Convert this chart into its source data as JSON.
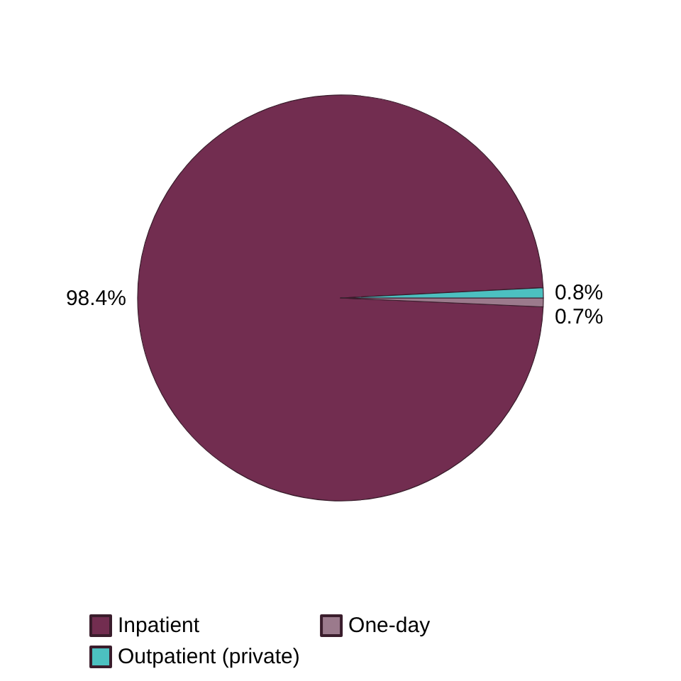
{
  "chart_data": {
    "type": "pie",
    "categories": [
      "Inpatient",
      "One-day",
      "Outpatient (private)"
    ],
    "values": [
      98.4,
      0.7,
      0.8
    ],
    "colors": [
      "#722d50",
      "#9b7a8c",
      "#4cc0c0"
    ],
    "value_labels": [
      "98.4%",
      "0.7%",
      "0.8%"
    ],
    "legend": "bottom"
  }
}
